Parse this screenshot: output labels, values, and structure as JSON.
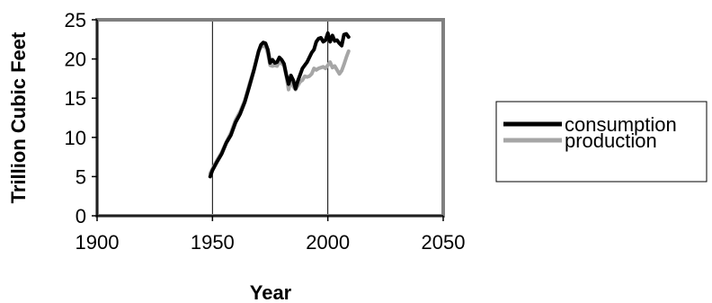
{
  "chart_data": {
    "type": "line",
    "xlabel": "Year",
    "ylabel": "Trillion Cubic Feet",
    "xlim": [
      1900,
      2050
    ],
    "ylim": [
      0,
      25
    ],
    "x_ticks": [
      1900,
      1950,
      2000,
      2050
    ],
    "y_ticks": [
      0,
      5,
      10,
      15,
      20,
      25
    ],
    "grid": "vertical",
    "legend_position": "right",
    "series": [
      {
        "name": "consumption",
        "color": "#000000",
        "points": [
          [
            1949,
            5.0
          ],
          [
            1950,
            5.8
          ],
          [
            1952,
            6.9
          ],
          [
            1954,
            7.9
          ],
          [
            1956,
            9.3
          ],
          [
            1958,
            10.3
          ],
          [
            1960,
            11.9
          ],
          [
            1962,
            13.0
          ],
          [
            1964,
            14.5
          ],
          [
            1966,
            16.5
          ],
          [
            1968,
            18.6
          ],
          [
            1970,
            21.0
          ],
          [
            1971,
            21.8
          ],
          [
            1972,
            22.1
          ],
          [
            1973,
            22.0
          ],
          [
            1974,
            21.2
          ],
          [
            1975,
            19.5
          ],
          [
            1976,
            19.9
          ],
          [
            1977,
            19.5
          ],
          [
            1978,
            19.6
          ],
          [
            1979,
            20.2
          ],
          [
            1980,
            19.9
          ],
          [
            1981,
            19.4
          ],
          [
            1982,
            18.0
          ],
          [
            1983,
            16.8
          ],
          [
            1984,
            17.9
          ],
          [
            1985,
            17.3
          ],
          [
            1986,
            16.2
          ],
          [
            1987,
            17.2
          ],
          [
            1988,
            18.0
          ],
          [
            1989,
            18.8
          ],
          [
            1990,
            19.2
          ],
          [
            1991,
            19.6
          ],
          [
            1992,
            20.2
          ],
          [
            1993,
            20.8
          ],
          [
            1994,
            21.2
          ],
          [
            1995,
            22.2
          ],
          [
            1996,
            22.6
          ],
          [
            1997,
            22.7
          ],
          [
            1998,
            22.2
          ],
          [
            1999,
            22.4
          ],
          [
            2000,
            23.3
          ],
          [
            2001,
            22.2
          ],
          [
            2002,
            23.0
          ],
          [
            2003,
            22.3
          ],
          [
            2004,
            22.4
          ],
          [
            2005,
            22.0
          ],
          [
            2006,
            21.7
          ],
          [
            2007,
            23.1
          ],
          [
            2008,
            23.2
          ],
          [
            2009,
            22.8
          ]
        ]
      },
      {
        "name": "production",
        "color": "#a6a6a6",
        "points": [
          [
            1949,
            5.4
          ],
          [
            1950,
            6.0
          ],
          [
            1952,
            7.1
          ],
          [
            1954,
            8.1
          ],
          [
            1956,
            9.4
          ],
          [
            1958,
            10.6
          ],
          [
            1960,
            12.2
          ],
          [
            1962,
            13.3
          ],
          [
            1964,
            14.7
          ],
          [
            1966,
            16.8
          ],
          [
            1968,
            18.7
          ],
          [
            1970,
            20.9
          ],
          [
            1971,
            21.6
          ],
          [
            1972,
            21.6
          ],
          [
            1973,
            21.7
          ],
          [
            1974,
            20.7
          ],
          [
            1975,
            19.2
          ],
          [
            1976,
            19.1
          ],
          [
            1977,
            19.2
          ],
          [
            1978,
            19.1
          ],
          [
            1979,
            19.7
          ],
          [
            1980,
            19.4
          ],
          [
            1981,
            19.2
          ],
          [
            1982,
            17.8
          ],
          [
            1983,
            16.1
          ],
          [
            1984,
            17.5
          ],
          [
            1985,
            16.5
          ],
          [
            1986,
            16.1
          ],
          [
            1987,
            16.6
          ],
          [
            1988,
            17.1
          ],
          [
            1989,
            17.3
          ],
          [
            1990,
            17.8
          ],
          [
            1991,
            17.7
          ],
          [
            1992,
            17.8
          ],
          [
            1993,
            18.1
          ],
          [
            1994,
            18.8
          ],
          [
            1995,
            18.6
          ],
          [
            1996,
            18.8
          ],
          [
            1997,
            18.9
          ],
          [
            1998,
            19.0
          ],
          [
            1999,
            18.8
          ],
          [
            2000,
            19.2
          ],
          [
            2001,
            19.6
          ],
          [
            2002,
            18.9
          ],
          [
            2003,
            19.1
          ],
          [
            2004,
            18.6
          ],
          [
            2005,
            18.1
          ],
          [
            2006,
            18.5
          ],
          [
            2007,
            19.3
          ],
          [
            2008,
            20.2
          ],
          [
            2009,
            21.0
          ]
        ]
      }
    ]
  }
}
